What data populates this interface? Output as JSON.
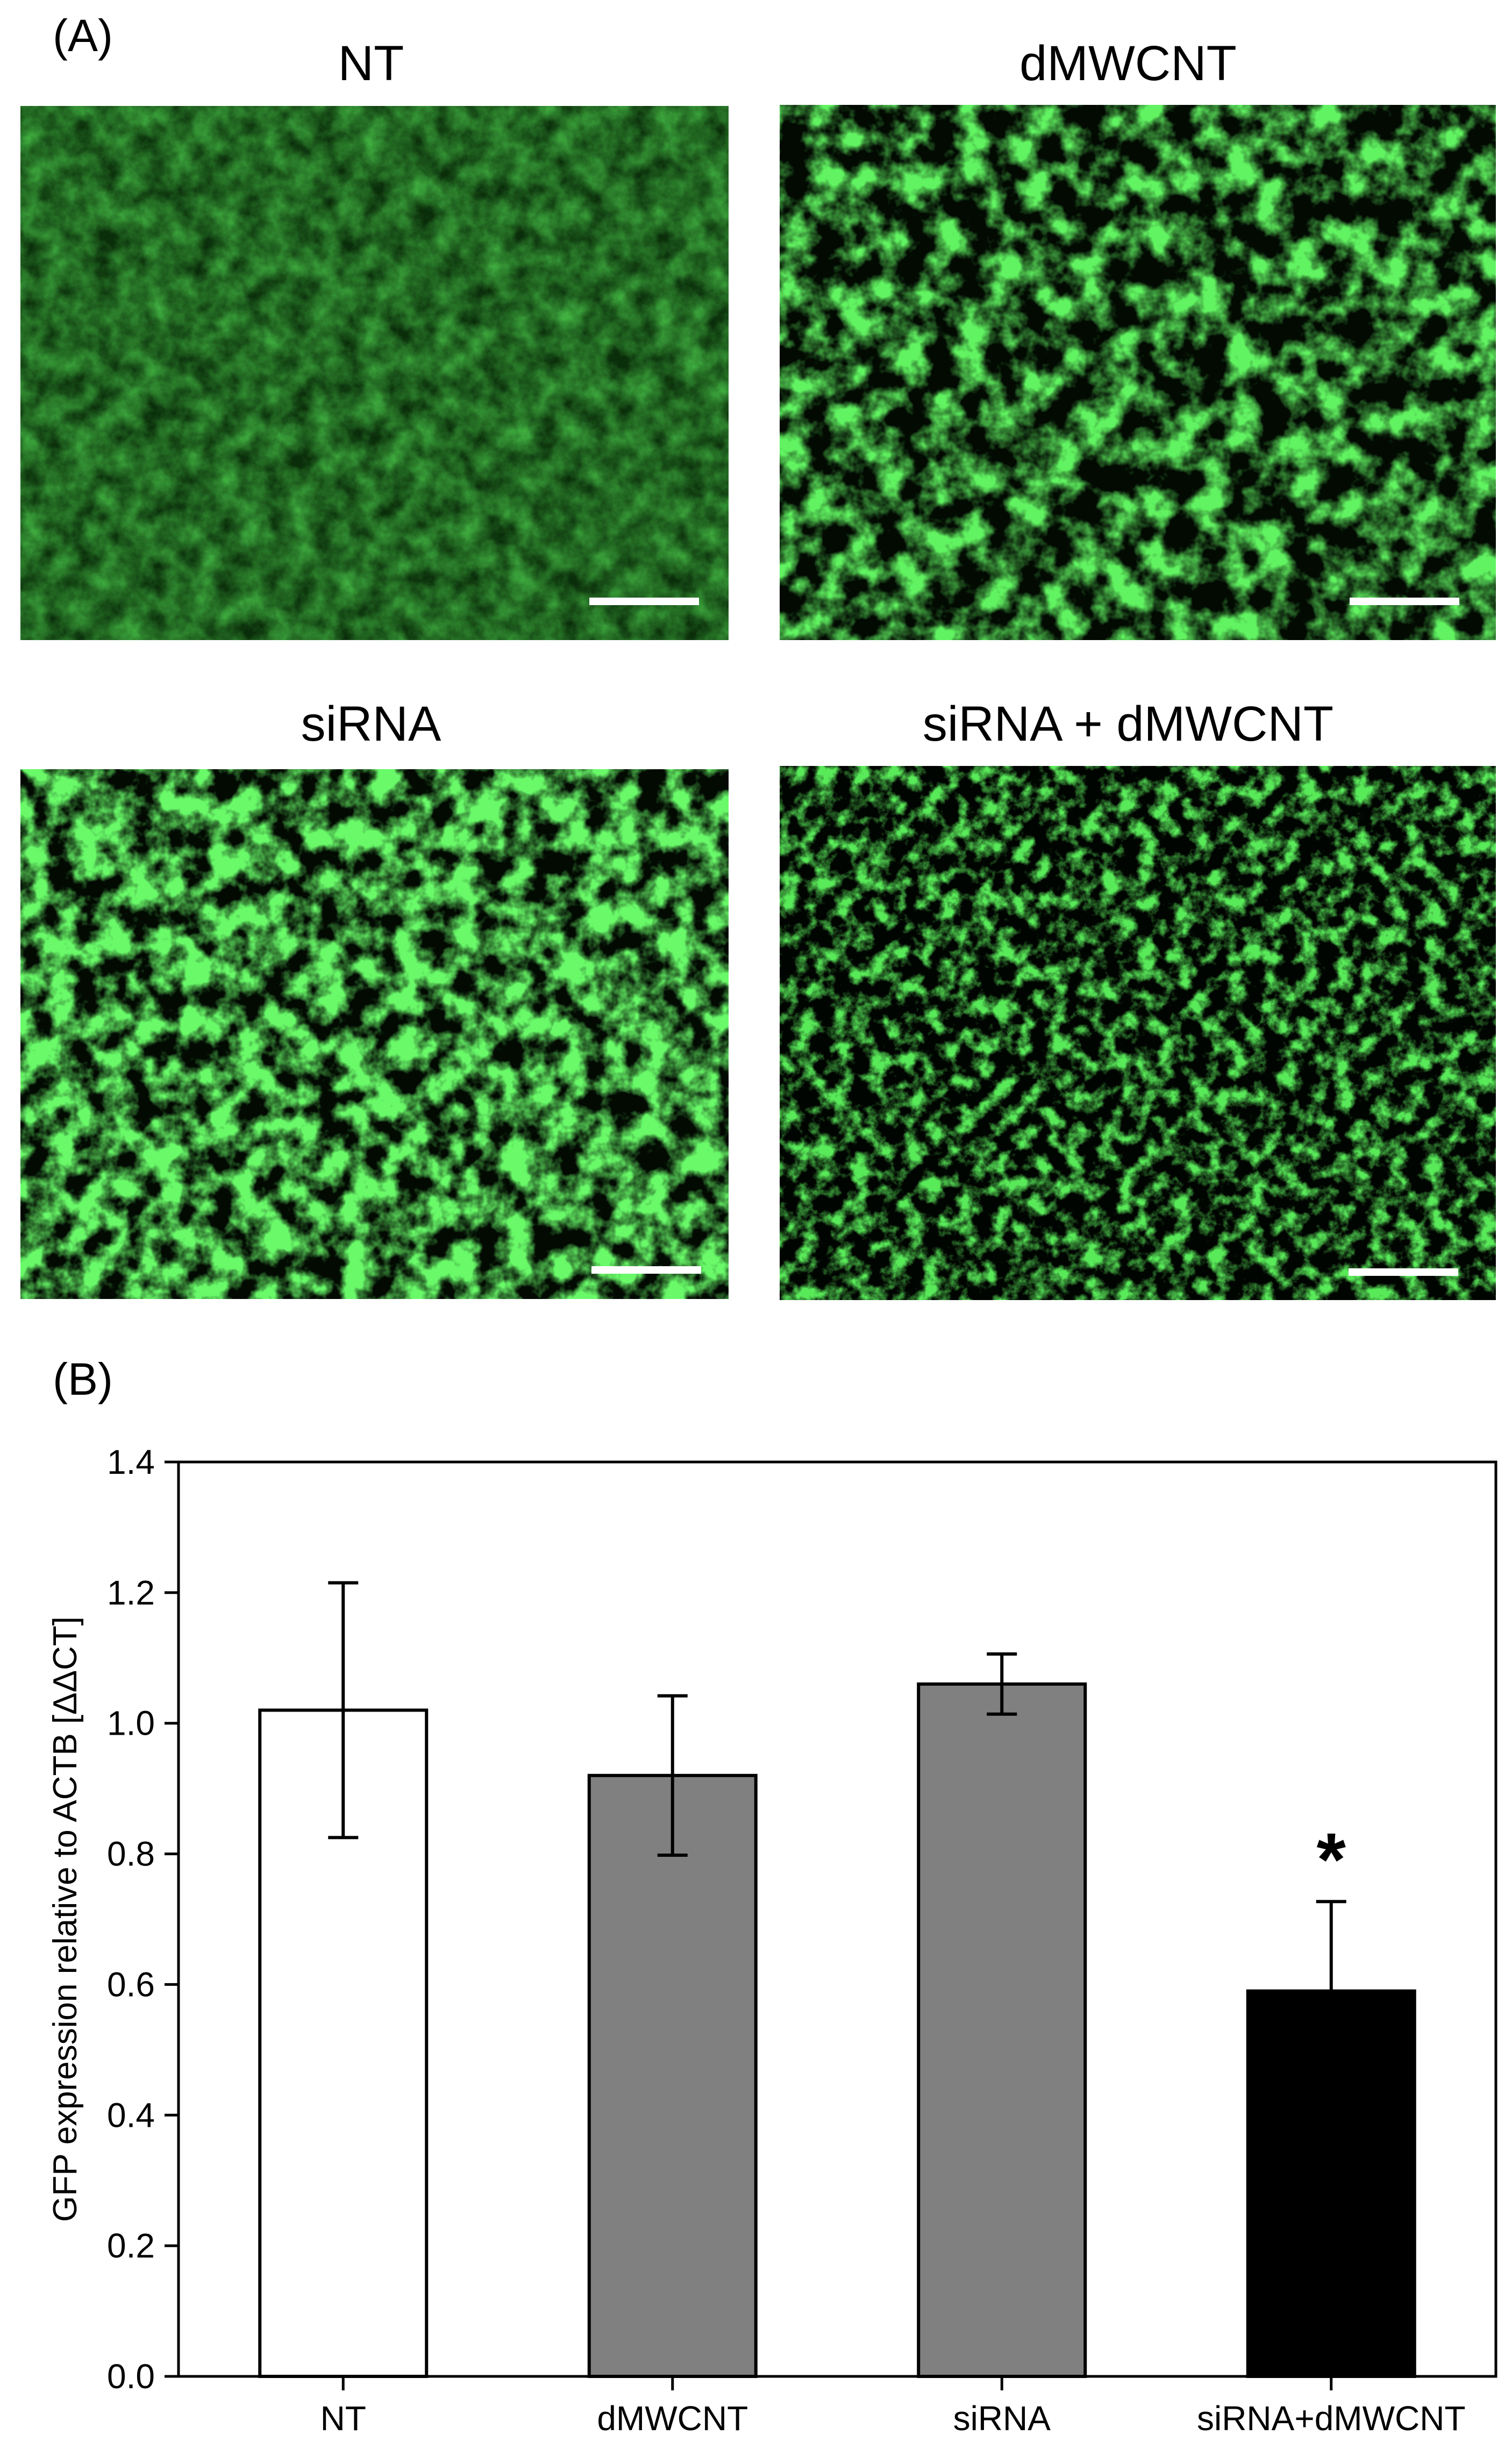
{
  "panel_a": {
    "label": "(A)",
    "images": [
      {
        "title": "NT",
        "scale_bar": true
      },
      {
        "title": "dMWCNT",
        "scale_bar": true
      },
      {
        "title": "siRNA",
        "scale_bar": true
      },
      {
        "title": "siRNA + dMWCNT",
        "scale_bar": true
      }
    ]
  },
  "panel_b": {
    "label": "(B)"
  },
  "colors": {
    "fluorescence": "#33ee33",
    "background_dark": "#031403",
    "bar_nt": "#ffffff",
    "bar_dmwcnt": "#808080",
    "bar_sirna": "#808080",
    "bar_combo": "#000000"
  },
  "chart_data": {
    "type": "bar",
    "categories": [
      "NT",
      "dMWCNT",
      "siRNA",
      "siRNA+dMWCNT"
    ],
    "values": [
      1.02,
      0.92,
      1.06,
      0.59
    ],
    "errors": [
      0.195,
      0.122,
      0.046,
      0.137
    ],
    "bar_colors": [
      "#ffffff",
      "#808080",
      "#808080",
      "#000000"
    ],
    "annotations": [
      {
        "category": "siRNA+dMWCNT",
        "text": "*"
      }
    ],
    "xlabel": "",
    "ylabel": "GFP expression relative to ACTB [ΔΔCT]",
    "ylim": [
      0,
      1.4
    ],
    "yticks": [
      "0.0",
      "0.2",
      "0.4",
      "0.6",
      "0.8",
      "1.0",
      "1.2",
      "1.4"
    ],
    "grid": false
  }
}
